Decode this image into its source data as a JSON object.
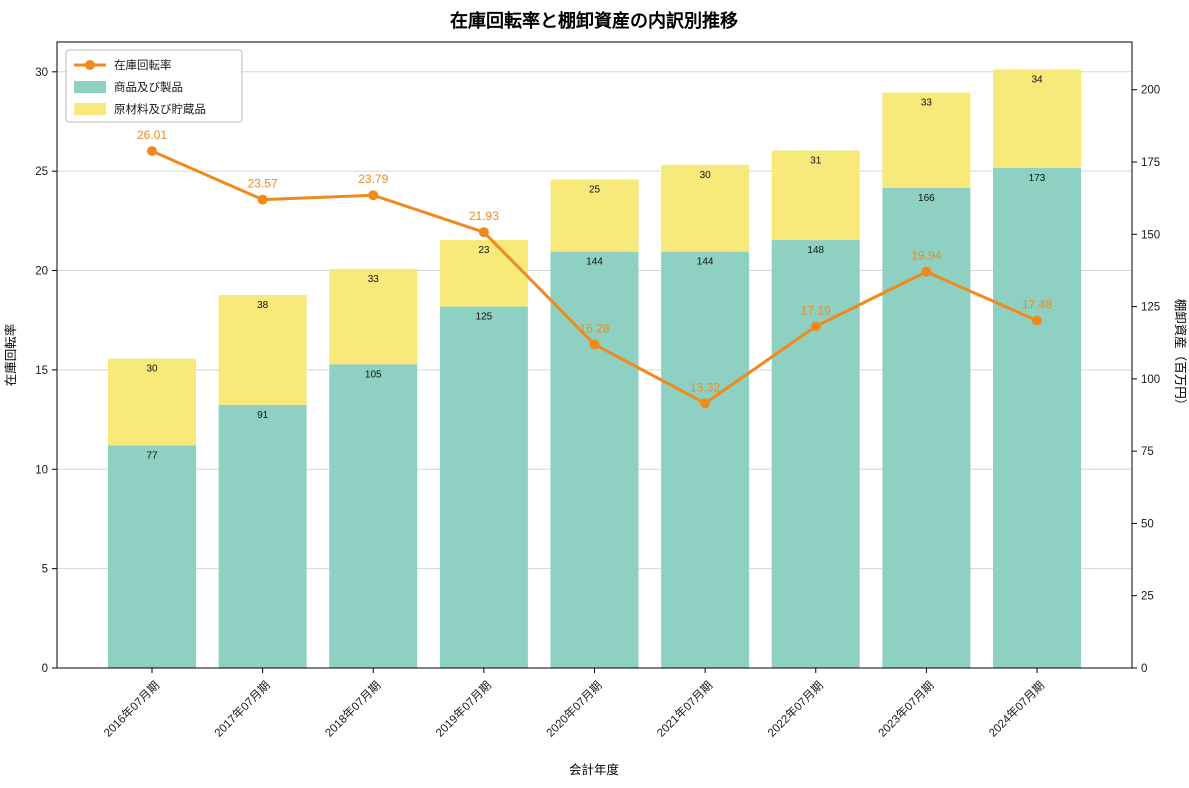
{
  "chart_data": {
    "type": "bar",
    "variant": "stacked-bars-with-line",
    "title": "在庫回転率と棚卸資産の内訳別推移",
    "xlabel": "会計年度",
    "ylabel_left": "在庫回転率",
    "ylabel_right": "棚卸資産（百万円）",
    "categories": [
      "2016年07月期",
      "2017年07月期",
      "2018年07月期",
      "2019年07月期",
      "2020年07月期",
      "2021年07月期",
      "2022年07月期",
      "2023年07月期",
      "2024年07月期"
    ],
    "series": [
      {
        "name": "商品及び製品",
        "type": "bar",
        "axis": "right",
        "color": "#8ed1c2",
        "values": [
          77,
          91,
          105,
          125,
          144,
          144,
          148,
          166,
          173
        ]
      },
      {
        "name": "原材料及び貯蔵品",
        "type": "bar",
        "axis": "right",
        "color": "#f7e97a",
        "values": [
          30,
          38,
          33,
          23,
          25,
          30,
          31,
          33,
          34
        ]
      },
      {
        "name": "在庫回転率",
        "type": "line",
        "axis": "left",
        "color": "#f18a1d",
        "values": [
          26.01,
          23.57,
          23.79,
          21.93,
          16.28,
          13.32,
          17.19,
          19.94,
          17.48
        ]
      }
    ],
    "ylim_left": [
      0,
      31.5
    ],
    "yticks_left": [
      0,
      5,
      10,
      15,
      20,
      25,
      30
    ],
    "ylim_right": [
      0,
      216.5
    ],
    "yticks_right": [
      0,
      25,
      50,
      75,
      100,
      125,
      150,
      175,
      200
    ],
    "legend": {
      "position": "upper left",
      "entries": [
        "在庫回転率",
        "商品及び製品",
        "原材料及び貯蔵品"
      ]
    },
    "grid": true
  }
}
